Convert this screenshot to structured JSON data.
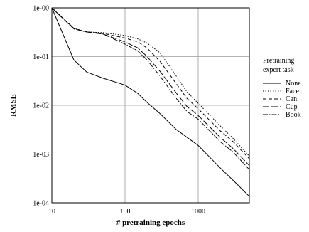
{
  "chart_data": {
    "type": "line",
    "xlabel": "# pretraining epochs",
    "ylabel": "RMSE",
    "xscale": "log",
    "yscale": "log",
    "xlim": [
      10,
      5000
    ],
    "ylim": [
      0.0001,
      1
    ],
    "grid": true,
    "legend_placement": "right",
    "legend_title": [
      "Pretraining",
      "expert task"
    ],
    "x_ticks": [
      {
        "value": 10,
        "label": "10"
      },
      {
        "value": 100,
        "label": "100"
      },
      {
        "value": 1000,
        "label": "1000"
      }
    ],
    "y_ticks": [
      {
        "value": 1,
        "label": "1e-00"
      },
      {
        "value": 0.1,
        "label": "1e-01"
      },
      {
        "value": 0.01,
        "label": "1e-02"
      },
      {
        "value": 0.001,
        "label": "1e-03"
      },
      {
        "value": 0.0001,
        "label": "1e-04"
      }
    ],
    "series": [
      {
        "name": "None",
        "dash": "",
        "x": [
          10,
          20,
          30,
          50,
          100,
          150,
          200,
          300,
          500,
          1000,
          2000,
          3000,
          5000
        ],
        "y": [
          1.0,
          0.085,
          0.048,
          0.036,
          0.026,
          0.0175,
          0.0115,
          0.0068,
          0.0032,
          0.0015,
          0.00052,
          0.00029,
          0.000135
        ]
      },
      {
        "name": "Face",
        "dash": "1.5,2",
        "x": [
          10,
          20,
          30,
          50,
          100,
          150,
          200,
          300,
          500,
          700,
          1000,
          2000,
          3000,
          5000
        ],
        "y": [
          1.0,
          0.38,
          0.32,
          0.31,
          0.27,
          0.23,
          0.19,
          0.12,
          0.04,
          0.019,
          0.011,
          0.0038,
          0.0021,
          0.0009
        ]
      },
      {
        "name": "Can",
        "dash": "5,3",
        "x": [
          10,
          20,
          30,
          50,
          100,
          150,
          200,
          300,
          500,
          700,
          1000,
          2000,
          3000,
          5000
        ],
        "y": [
          1.0,
          0.38,
          0.32,
          0.3,
          0.24,
          0.2,
          0.15,
          0.08,
          0.028,
          0.014,
          0.0085,
          0.003,
          0.0018,
          0.0008
        ]
      },
      {
        "name": "Cup",
        "dash": "9,3",
        "x": [
          10,
          20,
          30,
          50,
          100,
          150,
          200,
          300,
          500,
          700,
          1000,
          2000,
          3000,
          5000
        ],
        "y": [
          1.0,
          0.37,
          0.32,
          0.29,
          0.2,
          0.15,
          0.1,
          0.05,
          0.018,
          0.0095,
          0.0062,
          0.0022,
          0.0013,
          0.00058
        ]
      },
      {
        "name": "Book",
        "dash": "7,2,1.5,2",
        "x": [
          10,
          20,
          30,
          50,
          100,
          150,
          200,
          300,
          500,
          700,
          1000,
          2000,
          3000,
          5000
        ],
        "y": [
          1.0,
          0.37,
          0.32,
          0.29,
          0.18,
          0.13,
          0.085,
          0.04,
          0.014,
          0.0075,
          0.0052,
          0.0018,
          0.0011,
          0.00048
        ]
      }
    ]
  }
}
